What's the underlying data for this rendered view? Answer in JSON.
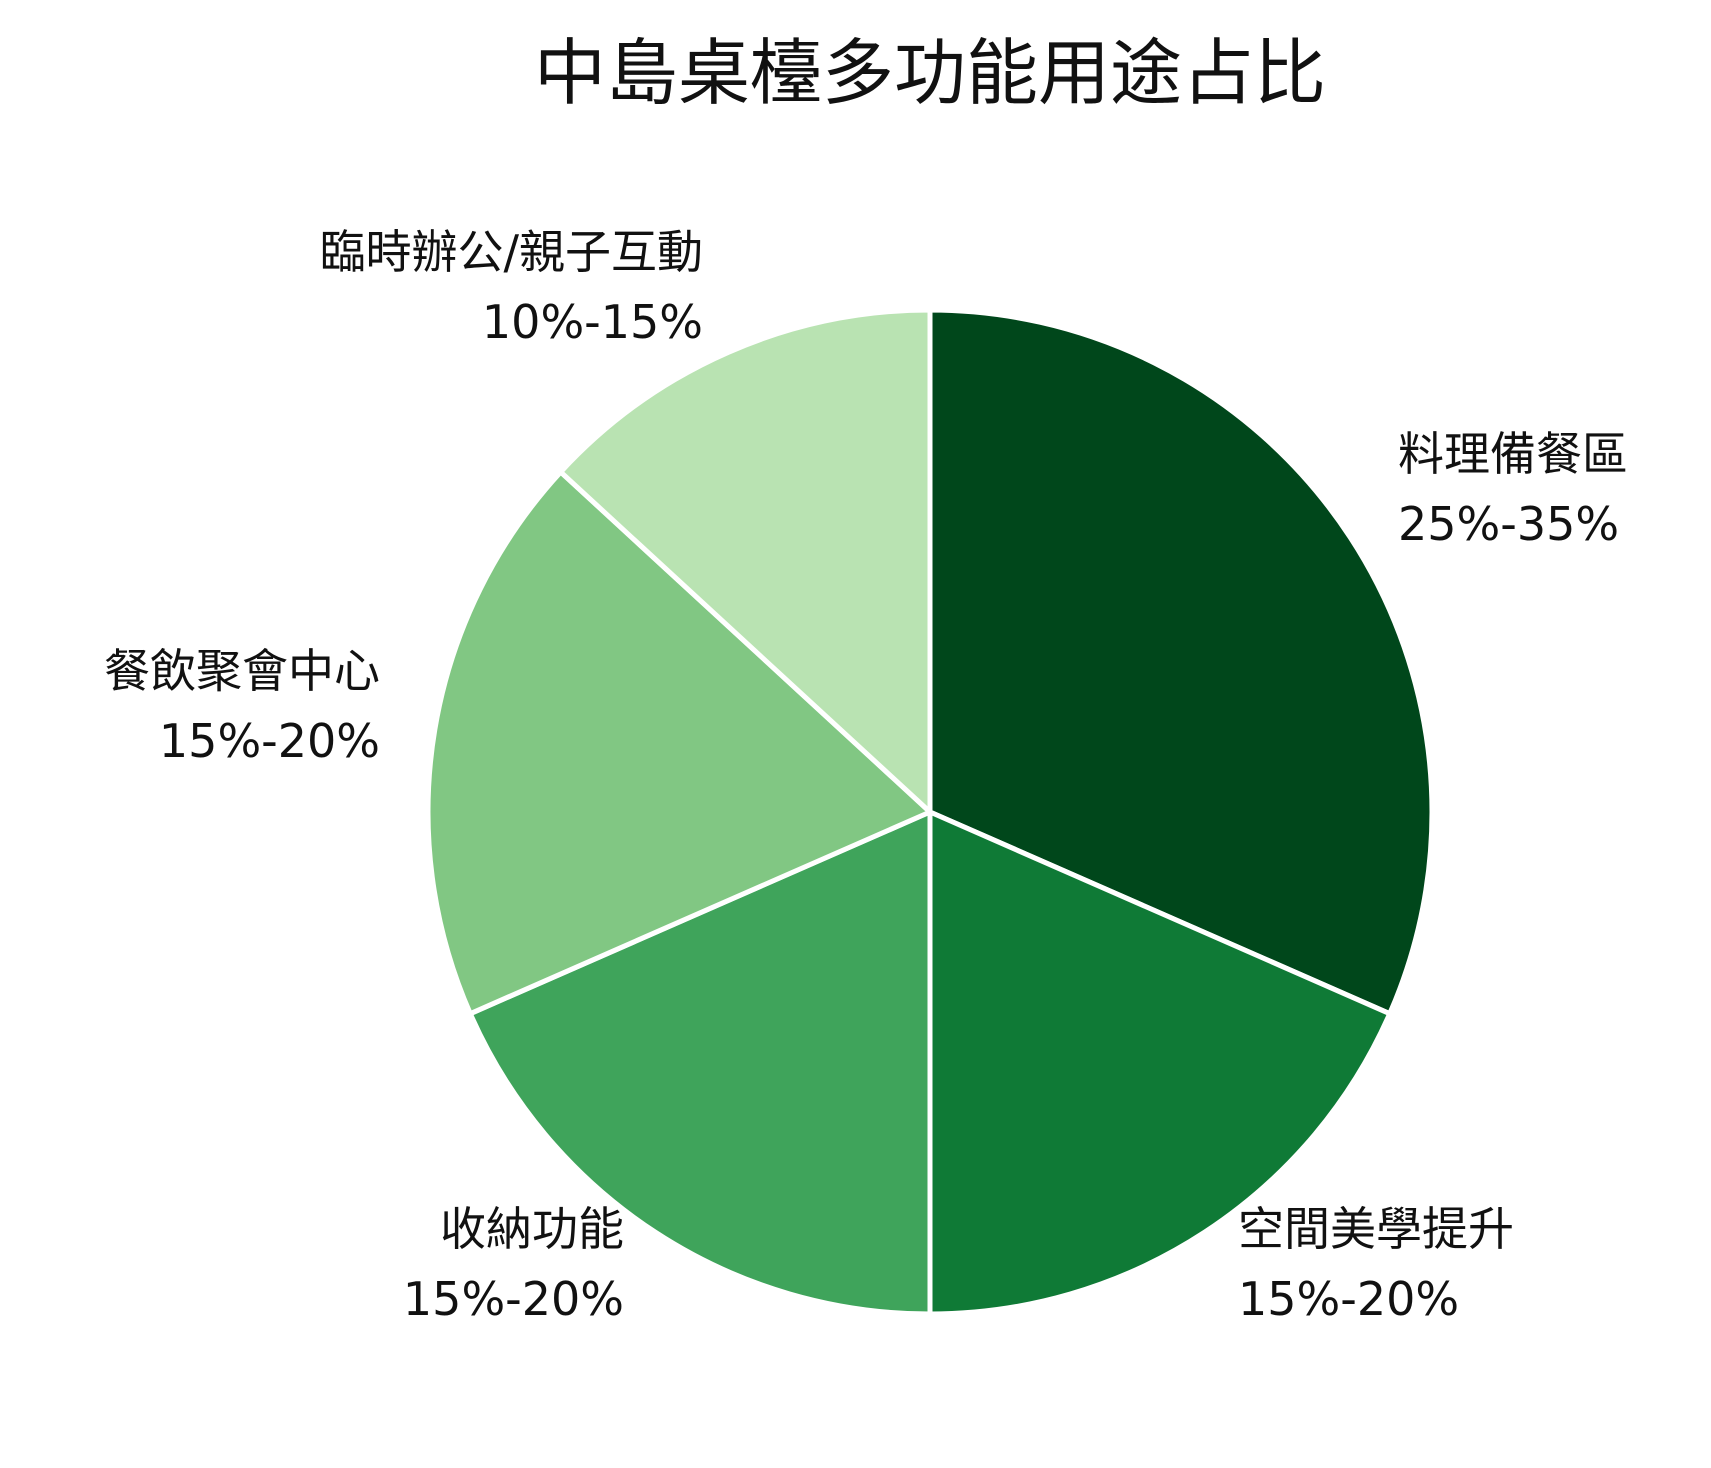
{
  "chart_data": {
    "type": "pie",
    "title": "中島桌檯多功能用途占比",
    "slices": [
      {
        "category": "料理備餐區",
        "range_label": "25%-35%",
        "value": 30,
        "color": "#00471b"
      },
      {
        "category": "空間美學提升",
        "range_label": "15%-20%",
        "value": 17.5,
        "color": "#0f7a36"
      },
      {
        "category": "收納功能",
        "range_label": "15%-20%",
        "value": 17.5,
        "color": "#3fa45b"
      },
      {
        "category": "餐飲聚會中心",
        "range_label": "15%-20%",
        "value": 17.5,
        "color": "#81c783"
      },
      {
        "category": "臨時辦公/親子互動",
        "range_label": "10%-15%",
        "value": 12.5,
        "color": "#b9e3b2"
      }
    ],
    "start_angle": "12 o'clock",
    "direction": "clockwise",
    "legend": "none"
  }
}
